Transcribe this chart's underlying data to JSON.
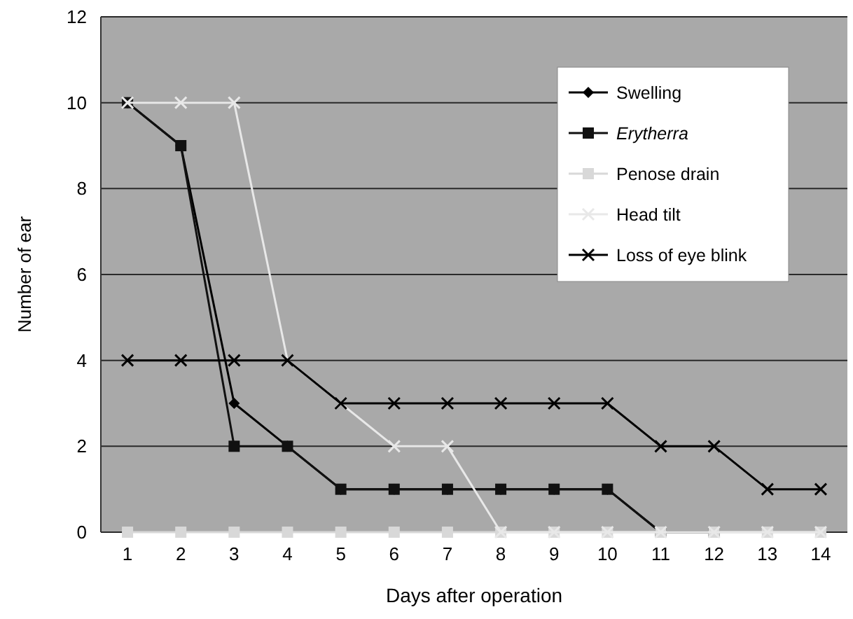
{
  "chart_data": {
    "type": "line",
    "xlabel": "Days after operation",
    "ylabel": "Number of ear",
    "categories": [
      "1",
      "2",
      "3",
      "4",
      "5",
      "6",
      "7",
      "8",
      "9",
      "10",
      "11",
      "12",
      "13",
      "14"
    ],
    "series": [
      {
        "name": "Swelling",
        "color": "#000000",
        "marker": "diamond",
        "values": [
          10,
          9,
          3,
          2,
          1,
          1,
          1,
          1,
          1,
          1,
          0,
          0,
          null,
          null
        ]
      },
      {
        "name": "Erytherra",
        "color": "#111111",
        "marker": "square",
        "values": [
          10,
          9,
          2,
          2,
          1,
          1,
          1,
          1,
          1,
          1,
          0,
          0,
          null,
          null
        ]
      },
      {
        "name": "Penose drain",
        "color": "#d8d8d8",
        "marker": "square",
        "values": [
          0,
          0,
          0,
          0,
          0,
          0,
          0,
          0,
          0,
          0,
          0,
          0,
          0,
          0
        ]
      },
      {
        "name": "Head tilt",
        "color": "#e8e8e8",
        "marker": "cross",
        "values": [
          10,
          10,
          10,
          4,
          3,
          2,
          2,
          0,
          0,
          0,
          0,
          0,
          0,
          0
        ]
      },
      {
        "name": "Loss of eye blink",
        "color": "#000000",
        "marker": "cross",
        "values": [
          4,
          4,
          4,
          4,
          3,
          3,
          3,
          3,
          3,
          3,
          2,
          2,
          1,
          1
        ]
      }
    ],
    "ylim": [
      0,
      12
    ],
    "yticks": [
      0,
      2,
      4,
      6,
      8,
      10,
      12
    ],
    "grid": "y",
    "legend": "top right"
  }
}
